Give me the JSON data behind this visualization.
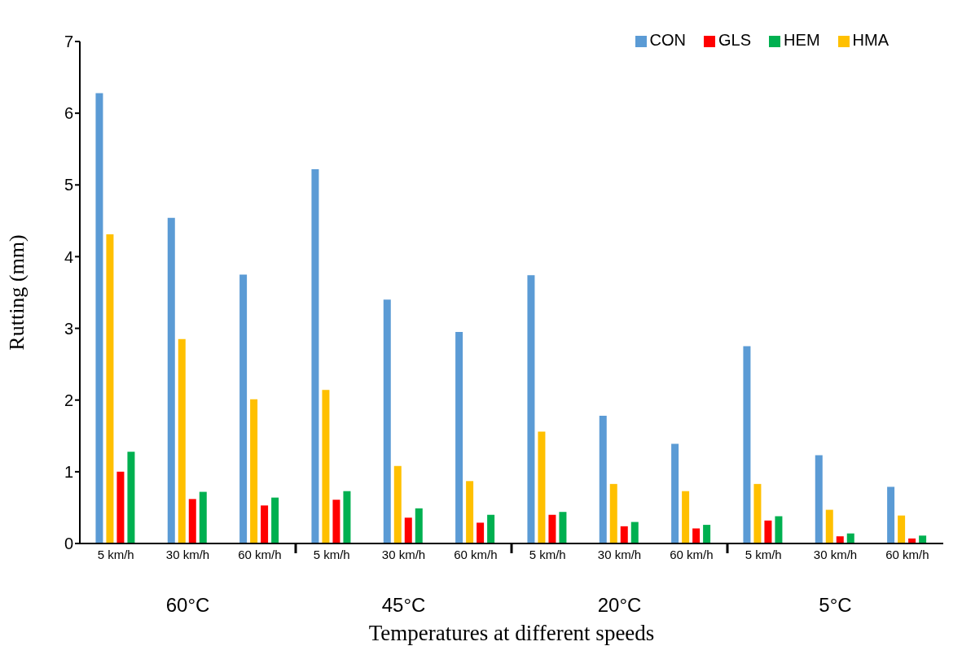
{
  "chart_data": {
    "type": "bar",
    "xlabel": "Temperatures at different speeds",
    "ylabel": "Rutting (mm)",
    "categories": [
      "5 km/h",
      "30 km/h",
      "60 km/h",
      "5 km/h",
      "30 km/h",
      "60 km/h",
      "5 km/h",
      "30 km/h",
      "60 km/h",
      "5 km/h",
      "30 km/h",
      "60 km/h"
    ],
    "annotations": [
      "60°C",
      "45°C",
      "20°C",
      "5°C"
    ],
    "series": [
      {
        "name": "CON",
        "color": "#5b9bd5",
        "values": [
          6.28,
          4.54,
          3.75,
          5.22,
          3.4,
          2.95,
          3.74,
          1.78,
          1.39,
          2.75,
          1.23,
          0.79
        ]
      },
      {
        "name": "HMA",
        "color": "#ffc000",
        "values": [
          4.31,
          2.85,
          2.01,
          2.14,
          1.08,
          0.87,
          1.56,
          0.83,
          0.73,
          0.83,
          0.47,
          0.39
        ]
      },
      {
        "name": "GLS",
        "color": "#ff0000",
        "values": [
          1.0,
          0.62,
          0.53,
          0.61,
          0.36,
          0.29,
          0.4,
          0.24,
          0.21,
          0.32,
          0.1,
          0.07
        ]
      },
      {
        "name": "HEM",
        "color": "#00b050",
        "values": [
          1.28,
          0.72,
          0.64,
          0.73,
          0.49,
          0.4,
          0.44,
          0.3,
          0.26,
          0.38,
          0.14,
          0.11
        ]
      }
    ],
    "ylim": [
      0,
      7
    ],
    "yticks": [
      0,
      1,
      2,
      3,
      4,
      5,
      6,
      7
    ],
    "grid": false,
    "legend": "top right"
  }
}
